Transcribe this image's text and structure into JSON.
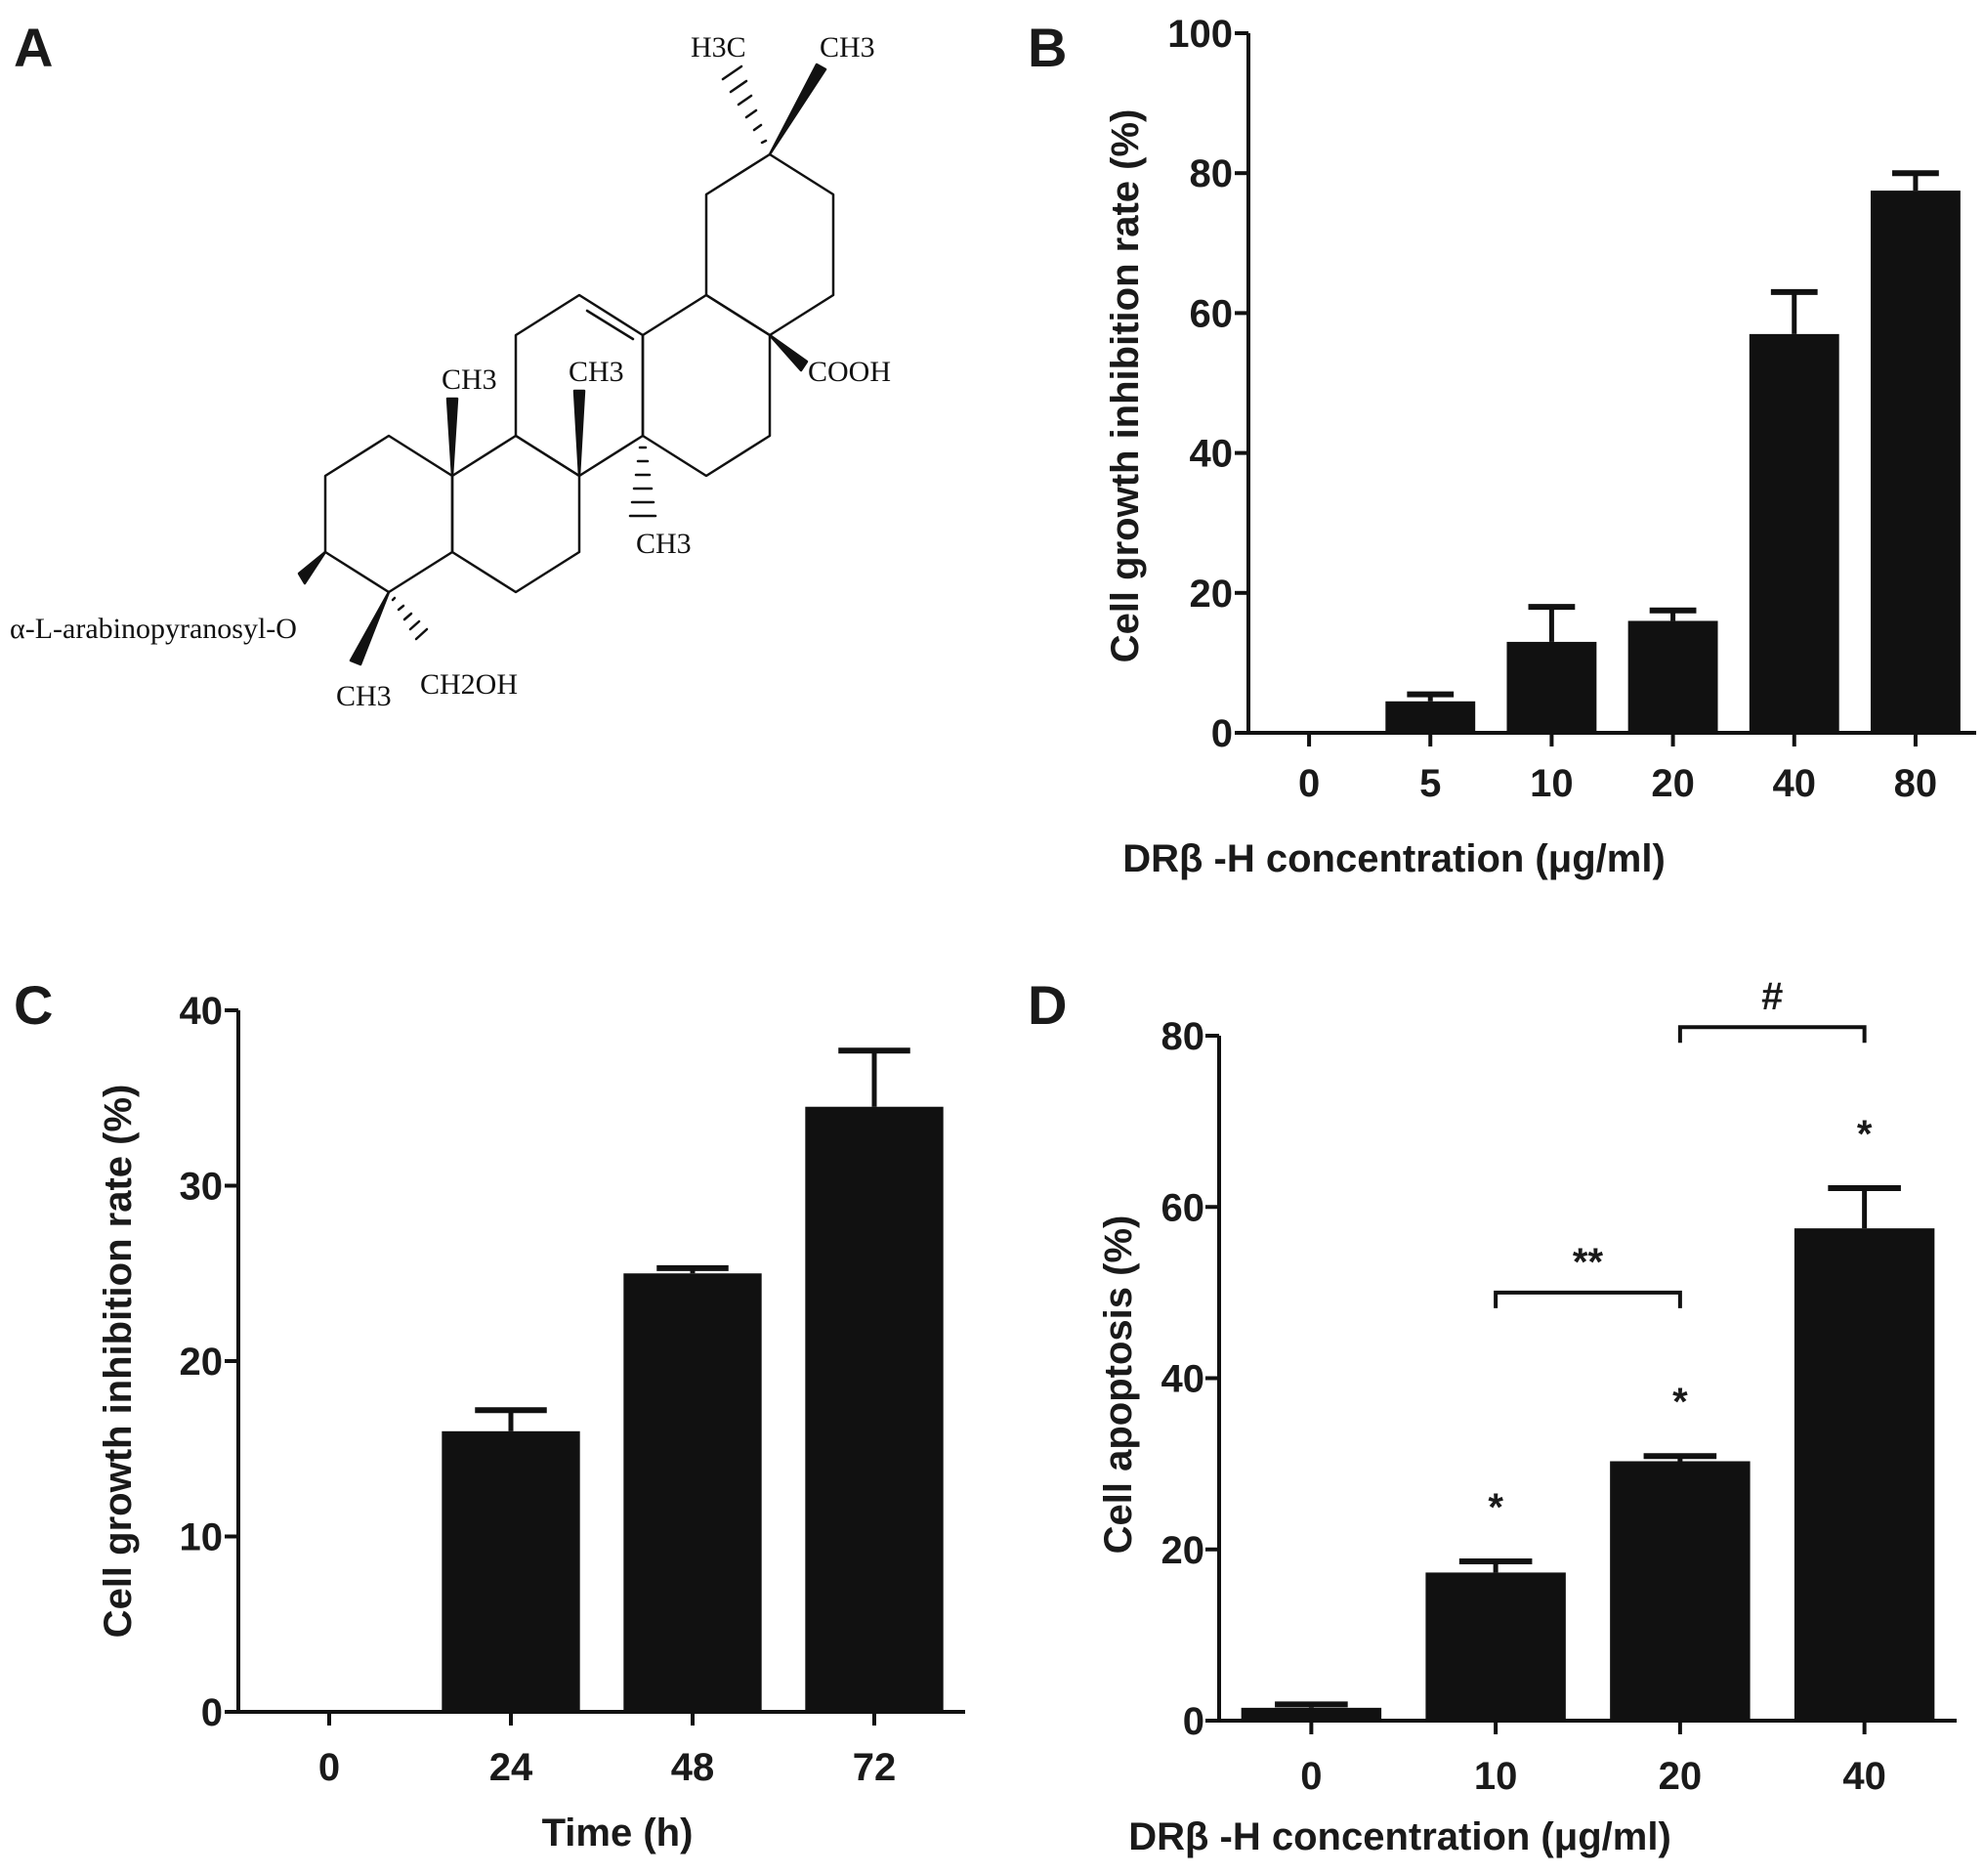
{
  "panels": {
    "a": {
      "letter": "A"
    },
    "b": {
      "letter": "B"
    },
    "c": {
      "letter": "C"
    },
    "d": {
      "letter": "D"
    }
  },
  "structure": {
    "substituent_o": "α-L-arabinopyranosyl-O",
    "ch3_c4": "CH3",
    "ch2oh_c4": "CH2OH",
    "ch3_c10": "CH3",
    "ch3_c8": "CH3",
    "ch3_c14": "CH3",
    "cooh": "COOH",
    "h3c_c20": "H3C",
    "ch3_c20": "CH3"
  },
  "colors": {
    "bar": "#111111",
    "axis": "#111111",
    "background": "#ffffff"
  },
  "chart_data": [
    {
      "panel": "B",
      "type": "bar",
      "categories": [
        "0",
        "5",
        "10",
        "20",
        "40",
        "80"
      ],
      "values": [
        0,
        4.5,
        13,
        16,
        57,
        77.5
      ],
      "errors": [
        0,
        1,
        5,
        1.5,
        6,
        2.5
      ],
      "ylabel": "Cell growth inhibition rate (%)",
      "xlabel": "DRβ -H concentration (μg/ml)",
      "ylim": [
        0,
        100
      ],
      "yticks": [
        "0",
        "20",
        "40",
        "60",
        "80",
        "100"
      ],
      "grid": false
    },
    {
      "panel": "C",
      "type": "bar",
      "categories": [
        "0",
        "24",
        "48",
        "72"
      ],
      "values": [
        0,
        16,
        25,
        34.5
      ],
      "errors": [
        0,
        1.2,
        0.3,
        3.2
      ],
      "ylabel": "Cell growth inhibition rate (%)",
      "xlabel": "Time (h)",
      "ylim": [
        0,
        40
      ],
      "yticks": [
        "0",
        "10",
        "20",
        "30",
        "40"
      ],
      "grid": false
    },
    {
      "panel": "D",
      "type": "bar",
      "categories": [
        "0",
        "10",
        "20",
        "40"
      ],
      "values": [
        1.5,
        17.3,
        30.3,
        57.5
      ],
      "errors": [
        0.4,
        1.3,
        0.6,
        4.7
      ],
      "ylabel": "Cell apoptosis (%)",
      "xlabel": "DRβ -H concentration (μg/ml)",
      "ylim": [
        0,
        80
      ],
      "yticks": [
        "0",
        "20",
        "40",
        "60",
        "80"
      ],
      "grid": false,
      "bar_marks": [
        "",
        "*",
        "*",
        "*"
      ],
      "brackets": [
        {
          "from": "10",
          "to": "20",
          "label": "**",
          "level": 50
        },
        {
          "from": "20",
          "to": "40",
          "label": "#",
          "level": 81
        }
      ]
    }
  ]
}
